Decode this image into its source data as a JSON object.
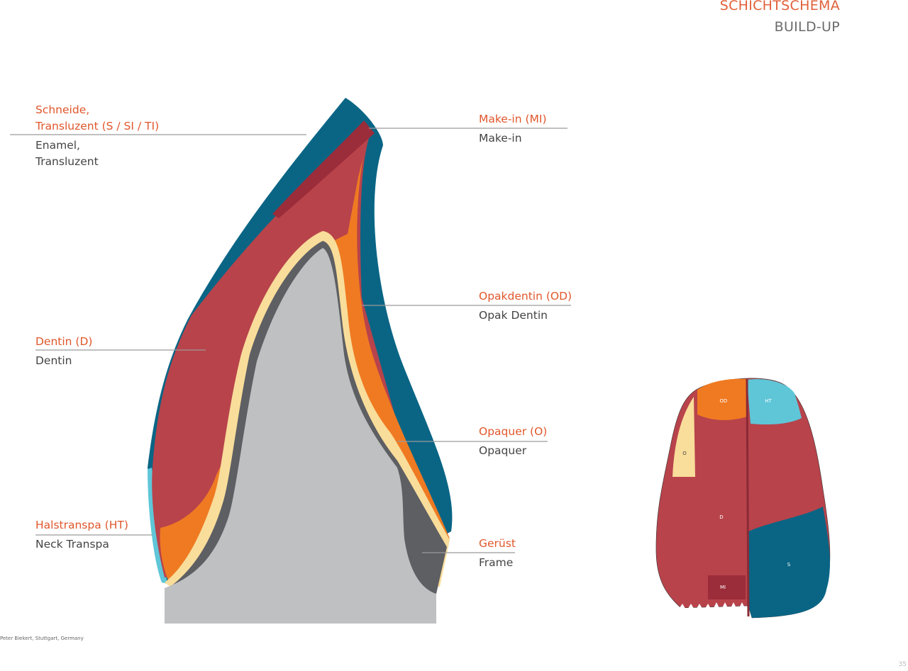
{
  "header": {
    "title_de": "SCHICHTSCHEMA",
    "title_en": "BUILD-UP"
  },
  "labels": [
    {
      "de": [
        "Schneide,",
        "Transluzent (S / SI / TI)"
      ],
      "en": [
        "Enamel,",
        "Transluzent"
      ]
    },
    {
      "de": [
        "Make-in (MI)"
      ],
      "en": [
        "Make-in"
      ]
    },
    {
      "de": [
        "Opakdentin (OD)"
      ],
      "en": [
        "Opak Dentin"
      ]
    },
    {
      "de": [
        "Dentin (D)"
      ],
      "en": [
        "Dentin"
      ]
    },
    {
      "de": [
        "Opaquer (O)"
      ],
      "en": [
        "Opaquer"
      ]
    },
    {
      "de": [
        "Halstranspa (HT)"
      ],
      "en": [
        "Neck Transpa"
      ]
    },
    {
      "de": [
        "Gerüst"
      ],
      "en": [
        "Frame"
      ]
    }
  ],
  "small_tooth": {
    "od": "OD",
    "ht": "HT",
    "o": "O",
    "d": "D",
    "mi": "MI",
    "s": "S"
  },
  "colors": {
    "enamel": "#0a6585",
    "makein": "#9b2c3a",
    "dentin": "#b8434b",
    "opakdentin": "#ef7a22",
    "opaquer": "#f9dd9a",
    "neck": "#5fc6d8",
    "frame_dark": "#5d5f63",
    "frame": "#bfc0c2",
    "accent": "#e0572b"
  },
  "credit": "Peter Biekert, Stuttgart, Germany",
  "page_number": "35"
}
